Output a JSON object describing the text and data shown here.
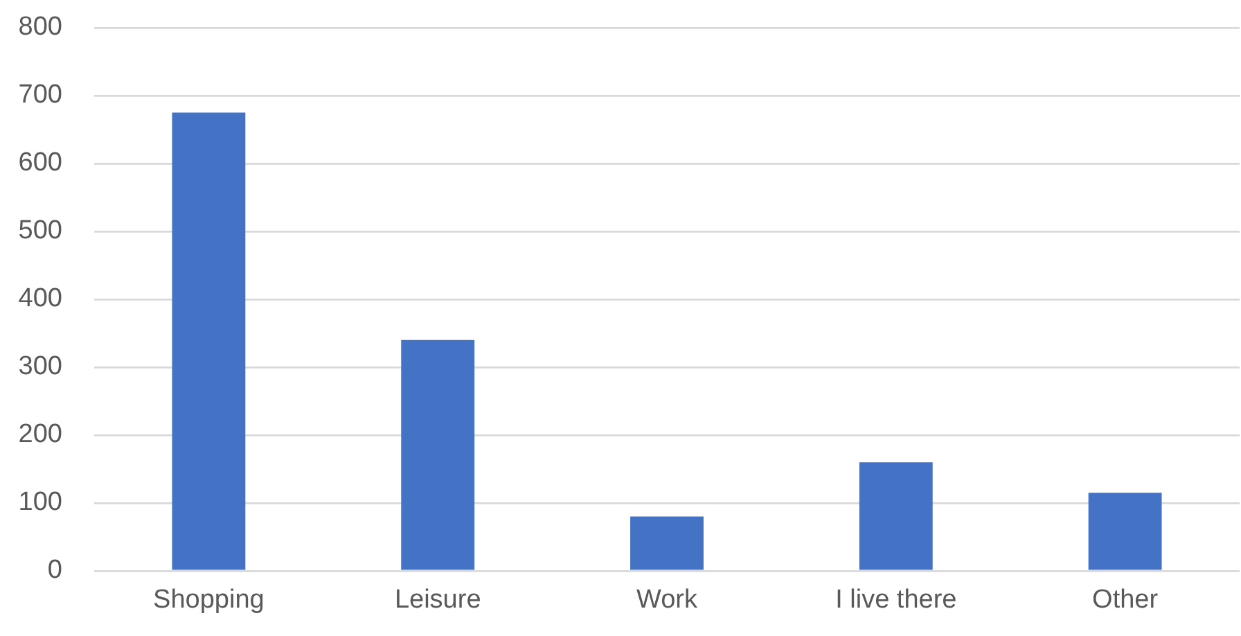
{
  "chart_data": {
    "type": "bar",
    "categories": [
      "Shopping",
      "Leisure",
      "Work",
      "I live there",
      "Other"
    ],
    "values": [
      675,
      340,
      80,
      160,
      115
    ],
    "color": "#4472c4",
    "ylim": [
      0,
      800
    ],
    "yticks": [
      0,
      100,
      200,
      300,
      400,
      500,
      600,
      700,
      800
    ],
    "grid": "y"
  }
}
